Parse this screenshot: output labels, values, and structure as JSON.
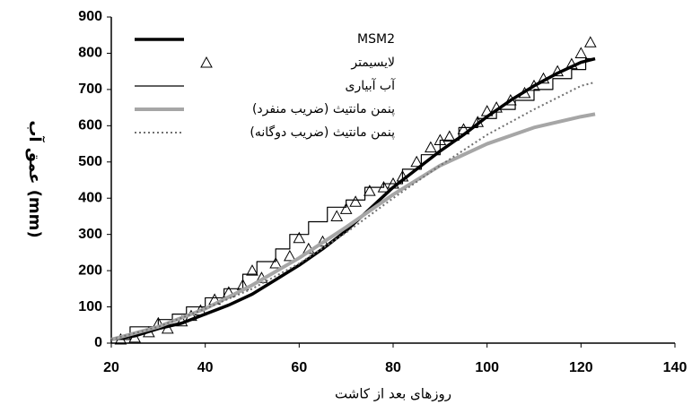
{
  "chart_data": {
    "type": "line",
    "x_label": "روزهای بعد از کاشت",
    "y_label": "عمق آب (mm)",
    "xlim": [
      20,
      140
    ],
    "xticks": [
      20,
      40,
      60,
      80,
      100,
      120,
      140
    ],
    "ylim": [
      0,
      900
    ],
    "yticks": [
      0,
      100,
      200,
      300,
      400,
      500,
      600,
      700,
      800,
      900
    ],
    "grid": false,
    "legend": "upper-left",
    "series": [
      {
        "name": "MSM2",
        "color": "#000000",
        "style": "line",
        "width": 3.5,
        "x": [
          20,
          25,
          30,
          35,
          40,
          45,
          50,
          55,
          60,
          65,
          70,
          75,
          80,
          85,
          90,
          95,
          100,
          105,
          110,
          115,
          120,
          123
        ],
        "values": [
          10,
          20,
          40,
          55,
          80,
          105,
          135,
          175,
          215,
          260,
          310,
          370,
          430,
          480,
          530,
          575,
          625,
          670,
          710,
          745,
          775,
          785
        ]
      },
      {
        "name": "لایسیمتر",
        "color": "#000000",
        "style": "marker",
        "x": [
          22,
          25,
          28,
          30,
          32,
          35,
          37,
          39,
          42,
          45,
          48,
          50,
          52,
          55,
          58,
          60,
          62,
          65,
          68,
          70,
          72,
          75,
          78,
          80,
          82,
          85,
          88,
          90,
          92,
          95,
          98,
          100,
          102,
          105,
          108,
          110,
          112,
          115,
          118,
          120,
          122
        ],
        "values": [
          10,
          15,
          30,
          55,
          40,
          60,
          75,
          90,
          120,
          140,
          160,
          200,
          180,
          220,
          240,
          290,
          260,
          280,
          350,
          370,
          390,
          420,
          430,
          440,
          460,
          500,
          540,
          560,
          570,
          590,
          610,
          640,
          650,
          670,
          690,
          710,
          730,
          750,
          770,
          800,
          830
        ]
      },
      {
        "name": "آب آبیاری",
        "color": "#000000",
        "style": "line",
        "width": 1.2,
        "x": [
          20,
          24,
          24,
          30,
          30,
          33,
          33,
          36,
          36,
          40,
          40,
          44,
          44,
          48,
          48,
          51,
          51,
          55,
          55,
          58,
          58,
          62,
          62,
          66,
          66,
          70,
          70,
          74,
          74,
          78,
          78,
          82,
          82,
          86,
          86,
          90,
          90,
          94,
          94,
          98,
          98,
          102,
          102,
          106,
          106,
          110,
          110,
          114,
          114,
          118,
          118,
          121,
          121,
          123
        ],
        "values": [
          10,
          10,
          45,
          45,
          65,
          65,
          80,
          80,
          100,
          100,
          125,
          125,
          150,
          150,
          190,
          190,
          225,
          225,
          260,
          260,
          300,
          300,
          335,
          335,
          375,
          375,
          395,
          395,
          430,
          430,
          440,
          440,
          480,
          480,
          520,
          520,
          560,
          560,
          595,
          595,
          620,
          620,
          645,
          645,
          670,
          670,
          700,
          700,
          730,
          730,
          755,
          755,
          785,
          785
        ]
      },
      {
        "name": "پنمن مانتیث (ضریب منفرد)",
        "color": "#a6a6a6",
        "style": "line",
        "width": 4,
        "x": [
          20,
          30,
          40,
          50,
          60,
          70,
          80,
          90,
          100,
          110,
          120,
          123
        ],
        "values": [
          10,
          45,
          95,
          160,
          235,
          320,
          410,
          490,
          550,
          595,
          625,
          632
        ]
      },
      {
        "name": "پنمن مانتیث (ضریب دوگانه)",
        "color": "#707070",
        "style": "dotted",
        "width": 2,
        "x": [
          20,
          30,
          40,
          50,
          60,
          70,
          80,
          90,
          100,
          110,
          120,
          123
        ],
        "values": [
          10,
          45,
          95,
          150,
          220,
          305,
          400,
          490,
          575,
          645,
          710,
          720
        ]
      }
    ]
  }
}
